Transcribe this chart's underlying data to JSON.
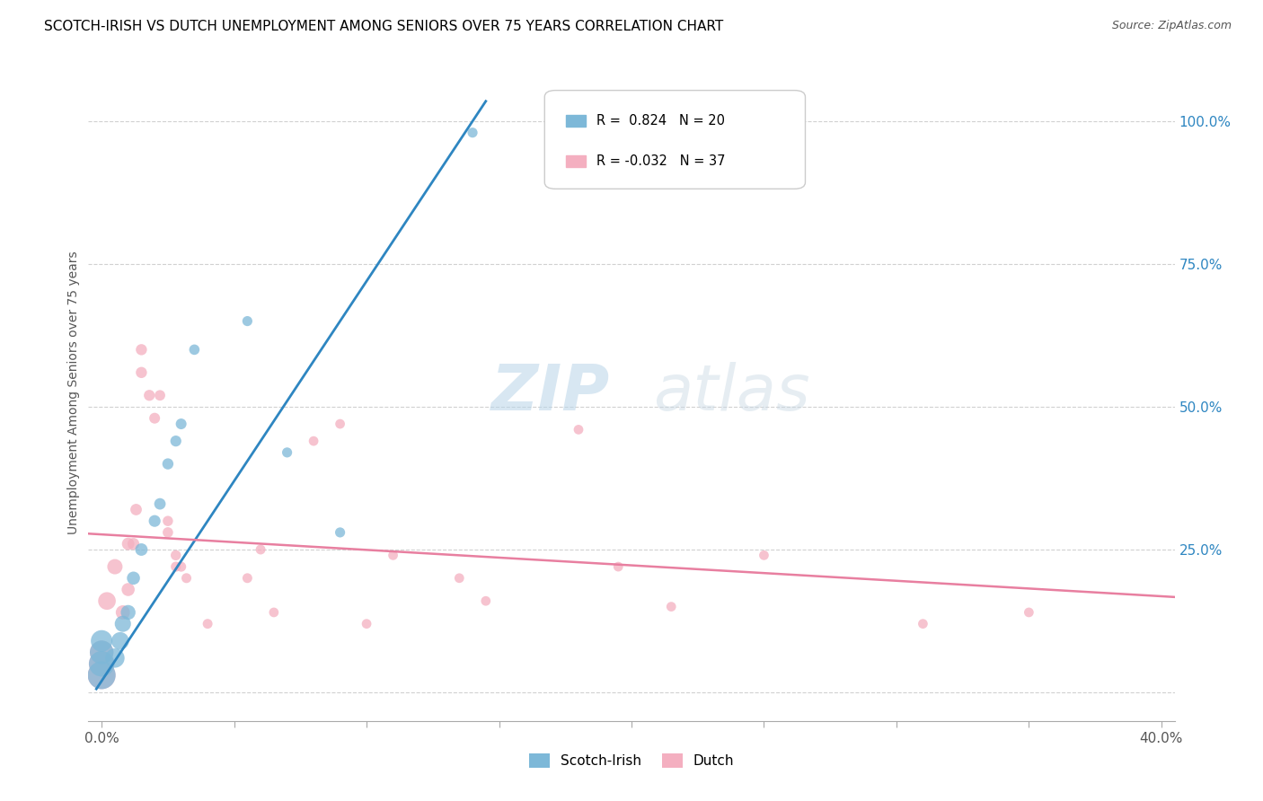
{
  "title": "SCOTCH-IRISH VS DUTCH UNEMPLOYMENT AMONG SENIORS OVER 75 YEARS CORRELATION CHART",
  "source": "Source: ZipAtlas.com",
  "ylabel": "Unemployment Among Seniors over 75 years",
  "scotch_irish_R": 0.824,
  "scotch_irish_N": 20,
  "dutch_R": -0.032,
  "dutch_N": 37,
  "scotch_irish_color": "#7db8d8",
  "dutch_color": "#f4afc0",
  "scotch_irish_line_color": "#2e86c1",
  "dutch_line_color": "#e87fa0",
  "watermark_zip": "#c8dff0",
  "watermark_atlas": "#b8c8d8",
  "scotch_irish_points": [
    [
      0.0,
      0.03
    ],
    [
      0.0,
      0.05
    ],
    [
      0.0,
      0.07
    ],
    [
      0.0,
      0.09
    ],
    [
      0.005,
      0.06
    ],
    [
      0.007,
      0.09
    ],
    [
      0.008,
      0.12
    ],
    [
      0.01,
      0.14
    ],
    [
      0.012,
      0.2
    ],
    [
      0.015,
      0.25
    ],
    [
      0.02,
      0.3
    ],
    [
      0.022,
      0.33
    ],
    [
      0.025,
      0.4
    ],
    [
      0.028,
      0.44
    ],
    [
      0.03,
      0.47
    ],
    [
      0.035,
      0.6
    ],
    [
      0.055,
      0.65
    ],
    [
      0.07,
      0.42
    ],
    [
      0.09,
      0.28
    ],
    [
      0.14,
      0.98
    ]
  ],
  "dutch_points": [
    [
      0.0,
      0.03
    ],
    [
      0.0,
      0.05
    ],
    [
      0.0,
      0.07
    ],
    [
      0.002,
      0.16
    ],
    [
      0.005,
      0.22
    ],
    [
      0.008,
      0.14
    ],
    [
      0.01,
      0.18
    ],
    [
      0.01,
      0.26
    ],
    [
      0.012,
      0.26
    ],
    [
      0.013,
      0.32
    ],
    [
      0.015,
      0.56
    ],
    [
      0.015,
      0.6
    ],
    [
      0.018,
      0.52
    ],
    [
      0.02,
      0.48
    ],
    [
      0.022,
      0.52
    ],
    [
      0.025,
      0.28
    ],
    [
      0.025,
      0.3
    ],
    [
      0.028,
      0.24
    ],
    [
      0.028,
      0.22
    ],
    [
      0.03,
      0.22
    ],
    [
      0.032,
      0.2
    ],
    [
      0.04,
      0.12
    ],
    [
      0.055,
      0.2
    ],
    [
      0.06,
      0.25
    ],
    [
      0.065,
      0.14
    ],
    [
      0.08,
      0.44
    ],
    [
      0.09,
      0.47
    ],
    [
      0.1,
      0.12
    ],
    [
      0.11,
      0.24
    ],
    [
      0.135,
      0.2
    ],
    [
      0.145,
      0.16
    ],
    [
      0.18,
      0.46
    ],
    [
      0.195,
      0.22
    ],
    [
      0.215,
      0.15
    ],
    [
      0.25,
      0.24
    ],
    [
      0.31,
      0.12
    ],
    [
      0.35,
      0.14
    ]
  ],
  "scotch_irish_sizes": [
    500,
    420,
    360,
    300,
    240,
    200,
    170,
    140,
    110,
    100,
    90,
    85,
    80,
    78,
    75,
    70,
    65,
    65,
    65,
    65
  ],
  "dutch_sizes": [
    500,
    420,
    360,
    200,
    150,
    130,
    110,
    100,
    90,
    85,
    80,
    80,
    78,
    75,
    72,
    70,
    68,
    68,
    65,
    65,
    63,
    62,
    62,
    62,
    60,
    60,
    60,
    60,
    60,
    60,
    60,
    60,
    60,
    60,
    60,
    60,
    60
  ],
  "xlim": [
    -0.005,
    0.405
  ],
  "ylim": [
    -0.05,
    1.1
  ],
  "x_ticks": [
    0.0,
    0.05,
    0.1,
    0.15,
    0.2,
    0.25,
    0.3,
    0.35,
    0.4
  ],
  "y_ticks": [
    0.0,
    0.25,
    0.5,
    0.75,
    1.0
  ],
  "x_tick_labels": [
    "0.0%",
    "",
    "",
    "",
    "",
    "",
    "",
    "",
    "40.0%"
  ],
  "y_tick_labels_right": [
    "",
    "25.0%",
    "50.0%",
    "75.0%",
    "100.0%"
  ]
}
